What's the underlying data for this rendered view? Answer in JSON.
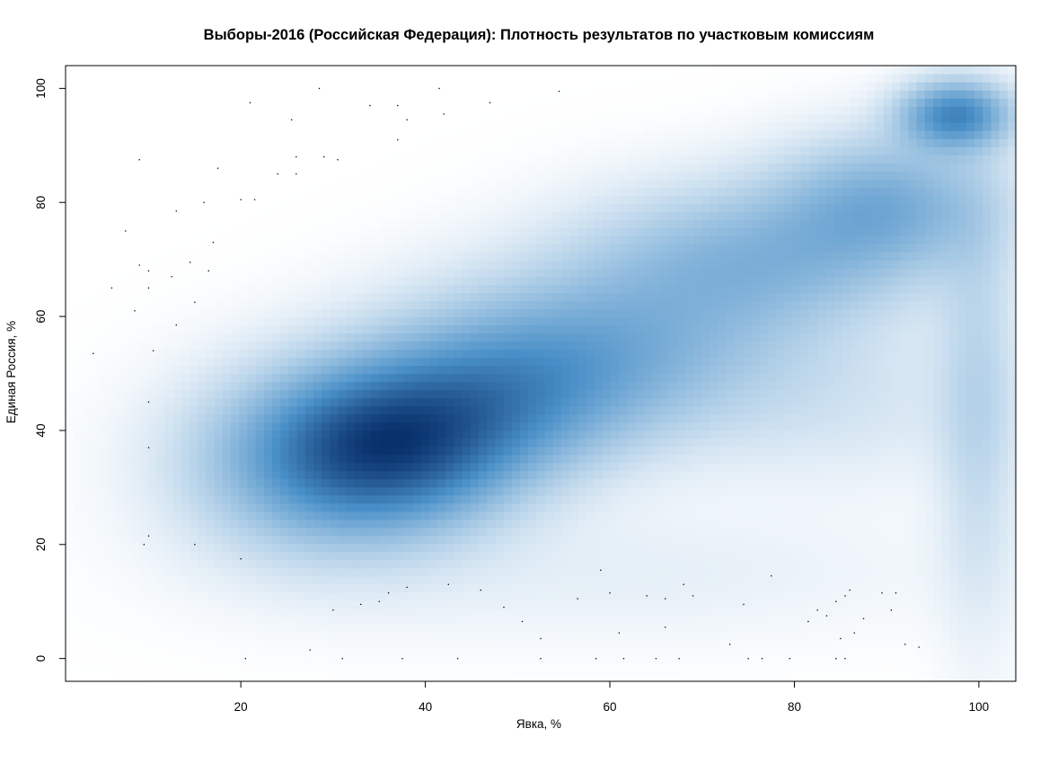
{
  "chart_data": {
    "type": "heatmap",
    "title": "Выборы-2016 (Российская Федерация): Плотность результатов по участковым комиссиям",
    "xlabel": "Явка, %",
    "ylabel": "Единая Россия, %",
    "xlim": [
      1,
      104
    ],
    "ylim": [
      -4,
      104
    ],
    "x_ticks": [
      20,
      40,
      60,
      80,
      100
    ],
    "y_ticks": [
      0,
      20,
      40,
      60,
      80,
      100
    ],
    "grid": false,
    "colors": {
      "low": "#ffffff",
      "mid": "#4a90c8",
      "high": "#08306b"
    },
    "density_clusters": [
      {
        "x": 36,
        "y": 37,
        "sx": 9,
        "sy": 9,
        "w": 1.0
      },
      {
        "x": 47,
        "y": 45,
        "sx": 10,
        "sy": 9,
        "w": 0.55
      },
      {
        "x": 28,
        "y": 34,
        "sx": 10,
        "sy": 11,
        "w": 0.45
      },
      {
        "x": 58,
        "y": 54,
        "sx": 13,
        "sy": 10,
        "w": 0.5
      },
      {
        "x": 75,
        "y": 70,
        "sx": 12,
        "sy": 9,
        "w": 0.45
      },
      {
        "x": 90,
        "y": 80,
        "sx": 8,
        "sy": 8,
        "w": 0.5
      },
      {
        "x": 97.5,
        "y": 95.5,
        "sx": 4,
        "sy": 4,
        "w": 0.85
      },
      {
        "x": 100,
        "y": 45,
        "sx": 3,
        "sy": 25,
        "w": 0.22
      },
      {
        "x": 85,
        "y": 45,
        "sx": 12,
        "sy": 10,
        "w": 0.12
      },
      {
        "x": 60,
        "y": 15,
        "sx": 25,
        "sy": 8,
        "w": 0.07
      }
    ],
    "outliers": [
      [
        21,
        97.5
      ],
      [
        28.5,
        100
      ],
      [
        34,
        97
      ],
      [
        37,
        97
      ],
      [
        41.5,
        100
      ],
      [
        47,
        97.5
      ],
      [
        54.5,
        99.5
      ],
      [
        25.5,
        94.5
      ],
      [
        38,
        94.5
      ],
      [
        42,
        95.5
      ],
      [
        37,
        91
      ],
      [
        9,
        87.5
      ],
      [
        17.5,
        86
      ],
      [
        24,
        85
      ],
      [
        26,
        88
      ],
      [
        29,
        88
      ],
      [
        30.5,
        87.5
      ],
      [
        26,
        85
      ],
      [
        16,
        80
      ],
      [
        20,
        80.5
      ],
      [
        21.5,
        80.5
      ],
      [
        13,
        78.5
      ],
      [
        7.5,
        75
      ],
      [
        17,
        73
      ],
      [
        9,
        69
      ],
      [
        14.5,
        69.5
      ],
      [
        10,
        68
      ],
      [
        16.5,
        68
      ],
      [
        12.5,
        67
      ],
      [
        6,
        65
      ],
      [
        10,
        65
      ],
      [
        15,
        62.5
      ],
      [
        8.5,
        61
      ],
      [
        13,
        58.5
      ],
      [
        4,
        53.5
      ],
      [
        10.5,
        54
      ],
      [
        10,
        45
      ],
      [
        10,
        37
      ],
      [
        9.5,
        20
      ],
      [
        10,
        21.5
      ],
      [
        15,
        20
      ],
      [
        20,
        17.5
      ],
      [
        20.5,
        0
      ],
      [
        27.5,
        1.5
      ],
      [
        31,
        0
      ],
      [
        37.5,
        0
      ],
      [
        43.5,
        0
      ],
      [
        52.5,
        0
      ],
      [
        58.5,
        0
      ],
      [
        61.5,
        0
      ],
      [
        65,
        0
      ],
      [
        67.5,
        0
      ],
      [
        75,
        0
      ],
      [
        76.5,
        0
      ],
      [
        79.5,
        0
      ],
      [
        84.5,
        0
      ],
      [
        85.5,
        0
      ],
      [
        30,
        8.5
      ],
      [
        33,
        9.5
      ],
      [
        35,
        10
      ],
      [
        36,
        11.5
      ],
      [
        38,
        12.5
      ],
      [
        42.5,
        13
      ],
      [
        46,
        12
      ],
      [
        48.5,
        9
      ],
      [
        50.5,
        6.5
      ],
      [
        52.5,
        3.5
      ],
      [
        56.5,
        10.5
      ],
      [
        59,
        15.5
      ],
      [
        60,
        11.5
      ],
      [
        61,
        4.5
      ],
      [
        64,
        11
      ],
      [
        66,
        10.5
      ],
      [
        66,
        5.5
      ],
      [
        68,
        13
      ],
      [
        69,
        11
      ],
      [
        73,
        2.5
      ],
      [
        74.5,
        9.5
      ],
      [
        77.5,
        14.5
      ],
      [
        81.5,
        6.5
      ],
      [
        82.5,
        8.5
      ],
      [
        83.5,
        7.5
      ],
      [
        84.5,
        10
      ],
      [
        85.5,
        11
      ],
      [
        86,
        12
      ],
      [
        86.5,
        4.5
      ],
      [
        87.5,
        7
      ],
      [
        85,
        3.5
      ],
      [
        89.5,
        11.5
      ],
      [
        90.5,
        8.5
      ],
      [
        91,
        11.5
      ],
      [
        92,
        2.5
      ],
      [
        93.5,
        2
      ]
    ]
  }
}
